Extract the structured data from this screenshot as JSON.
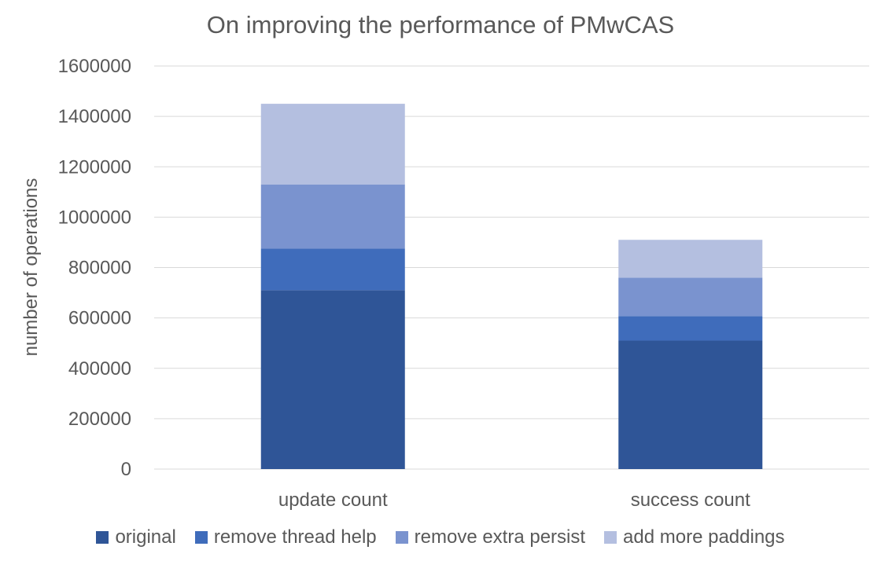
{
  "chart_data": {
    "type": "bar",
    "stacked": true,
    "title": "On improving the performance of PMwCAS",
    "xlabel": "",
    "ylabel": "number of operations",
    "ylim": [
      0,
      1600000
    ],
    "yticks": [
      0,
      200000,
      400000,
      600000,
      800000,
      1000000,
      1200000,
      1400000,
      1600000
    ],
    "grid": true,
    "legend_position": "bottom",
    "categories": [
      "update count",
      "success count"
    ],
    "series": [
      {
        "name": "original",
        "color": "#2F5597",
        "values": [
          710000,
          510000
        ]
      },
      {
        "name": "remove thread help",
        "color": "#3F6CBB",
        "values": [
          165000,
          97000
        ]
      },
      {
        "name": "remove extra persist",
        "color": "#7A93CF",
        "values": [
          255000,
          153000
        ]
      },
      {
        "name": "add more paddings",
        "color": "#B4BFE0",
        "values": [
          320000,
          150000
        ]
      }
    ]
  }
}
